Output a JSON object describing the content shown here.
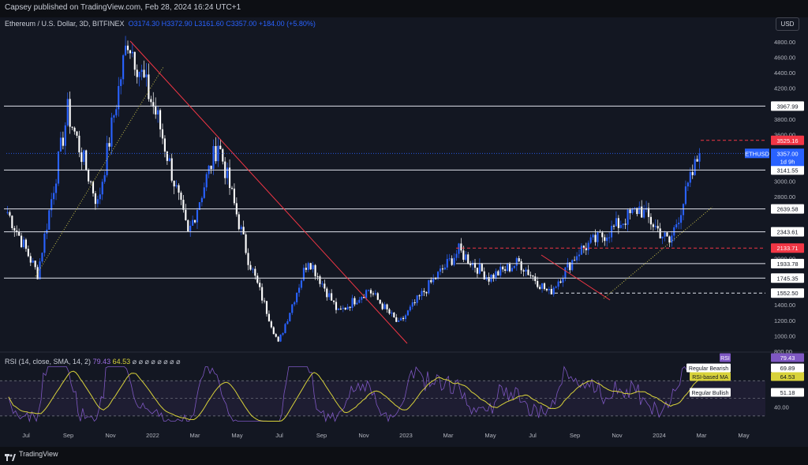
{
  "header": {
    "published": "Capsey published on TradingView.com, Feb 28, 2024 16:24 UTC+1"
  },
  "symbol": {
    "name": "Ethereum / U.S. Dollar, 3D, BITFINEX",
    "open": "O3174.30",
    "high": "H3372.90",
    "low": "L3161.60",
    "close": "C3357.00",
    "change": "+184.00 (+5.80%)"
  },
  "currency_button": "USD",
  "price_axis": {
    "ticks": [
      "4800.00",
      "4600.00",
      "4400.00",
      "4200.00",
      "3800.00",
      "3600.00",
      "3000.00",
      "2800.00",
      "2000.00",
      "1400.00",
      "1200.00",
      "1000.00",
      "800.00"
    ]
  },
  "levels": [
    {
      "label": "3967.99",
      "price": 3967.99
    },
    {
      "label": "3141.55",
      "price": 3141.55
    },
    {
      "label": "2639.58",
      "price": 2639.58
    },
    {
      "label": "2343.61",
      "price": 2343.61
    },
    {
      "label": "1933.78",
      "price": 1933.78
    },
    {
      "label": "1745.35",
      "price": 1745.35
    },
    {
      "label": "1552.50",
      "price": 1552.5
    }
  ],
  "red_levels": [
    {
      "label": "3525.16",
      "price": 3525.16
    },
    {
      "label": "2133.71",
      "price": 2133.71
    }
  ],
  "current": {
    "ticker": "ETHUSD",
    "price": "3357.00",
    "timer": "1d 9h",
    "value": 3357
  },
  "time_axis": [
    "Jul",
    "Sep",
    "Nov",
    "2022",
    "Mar",
    "May",
    "Jul",
    "Sep",
    "Nov",
    "2023",
    "Mar",
    "May",
    "Jul",
    "Sep",
    "Nov",
    "2024",
    "Mar",
    "May"
  ],
  "rsi": {
    "legend_name": "RSI (14, close, SMA, 14, 2)",
    "value": "79.43",
    "ma_value": "64.53",
    "placeholders": "⌀ ⌀ ⌀ ⌀ ⌀ ⌀ ⌀ ⌀",
    "axis": [
      "60.00",
      "40.00"
    ],
    "tags": {
      "rsi": "RSI",
      "rsi_val": "79.43",
      "bearish": "Regular Bearish",
      "bearish_val": "69.89",
      "ma": "RSI-based MA",
      "ma_val": "64.53",
      "bullish": "Regular Bullish",
      "bullish_val": "51.18"
    }
  },
  "footer": {
    "brand": "TradingView"
  },
  "colors": {
    "up": "#2962ff",
    "down": "#ffffff",
    "rsi": "#7e57c2",
    "rsi_ma": "#d8d23a",
    "red": "#f23645",
    "bg": "#131722"
  },
  "chart_data": {
    "type": "candlestick",
    "timeframe": "3D",
    "ylim": [
      800,
      4900
    ],
    "price_path_keypoints": [
      {
        "date": "2021-06",
        "price": 2600
      },
      {
        "date": "2021-07",
        "price": 1800
      },
      {
        "date": "2021-09",
        "price": 3900
      },
      {
        "date": "2021-09",
        "price": 2700
      },
      {
        "date": "2021-11",
        "price": 4850
      },
      {
        "date": "2021-12",
        "price": 3800
      },
      {
        "date": "2022-01",
        "price": 2300
      },
      {
        "date": "2022-04",
        "price": 3500
      },
      {
        "date": "2022-05",
        "price": 2000
      },
      {
        "date": "2022-06",
        "price": 900
      },
      {
        "date": "2022-08",
        "price": 2000
      },
      {
        "date": "2022-09",
        "price": 1300
      },
      {
        "date": "2022-11",
        "price": 1600
      },
      {
        "date": "2022-12",
        "price": 1150
      },
      {
        "date": "2023-01",
        "price": 1650
      },
      {
        "date": "2023-04",
        "price": 2100
      },
      {
        "date": "2023-06",
        "price": 1750
      },
      {
        "date": "2023-07",
        "price": 1950
      },
      {
        "date": "2023-09",
        "price": 1550
      },
      {
        "date": "2023-11",
        "price": 2100
      },
      {
        "date": "2023-12",
        "price": 2350
      },
      {
        "date": "2024-01",
        "price": 2650
      },
      {
        "date": "2024-01",
        "price": 2200
      },
      {
        "date": "2024-02",
        "price": 3357
      }
    ]
  }
}
